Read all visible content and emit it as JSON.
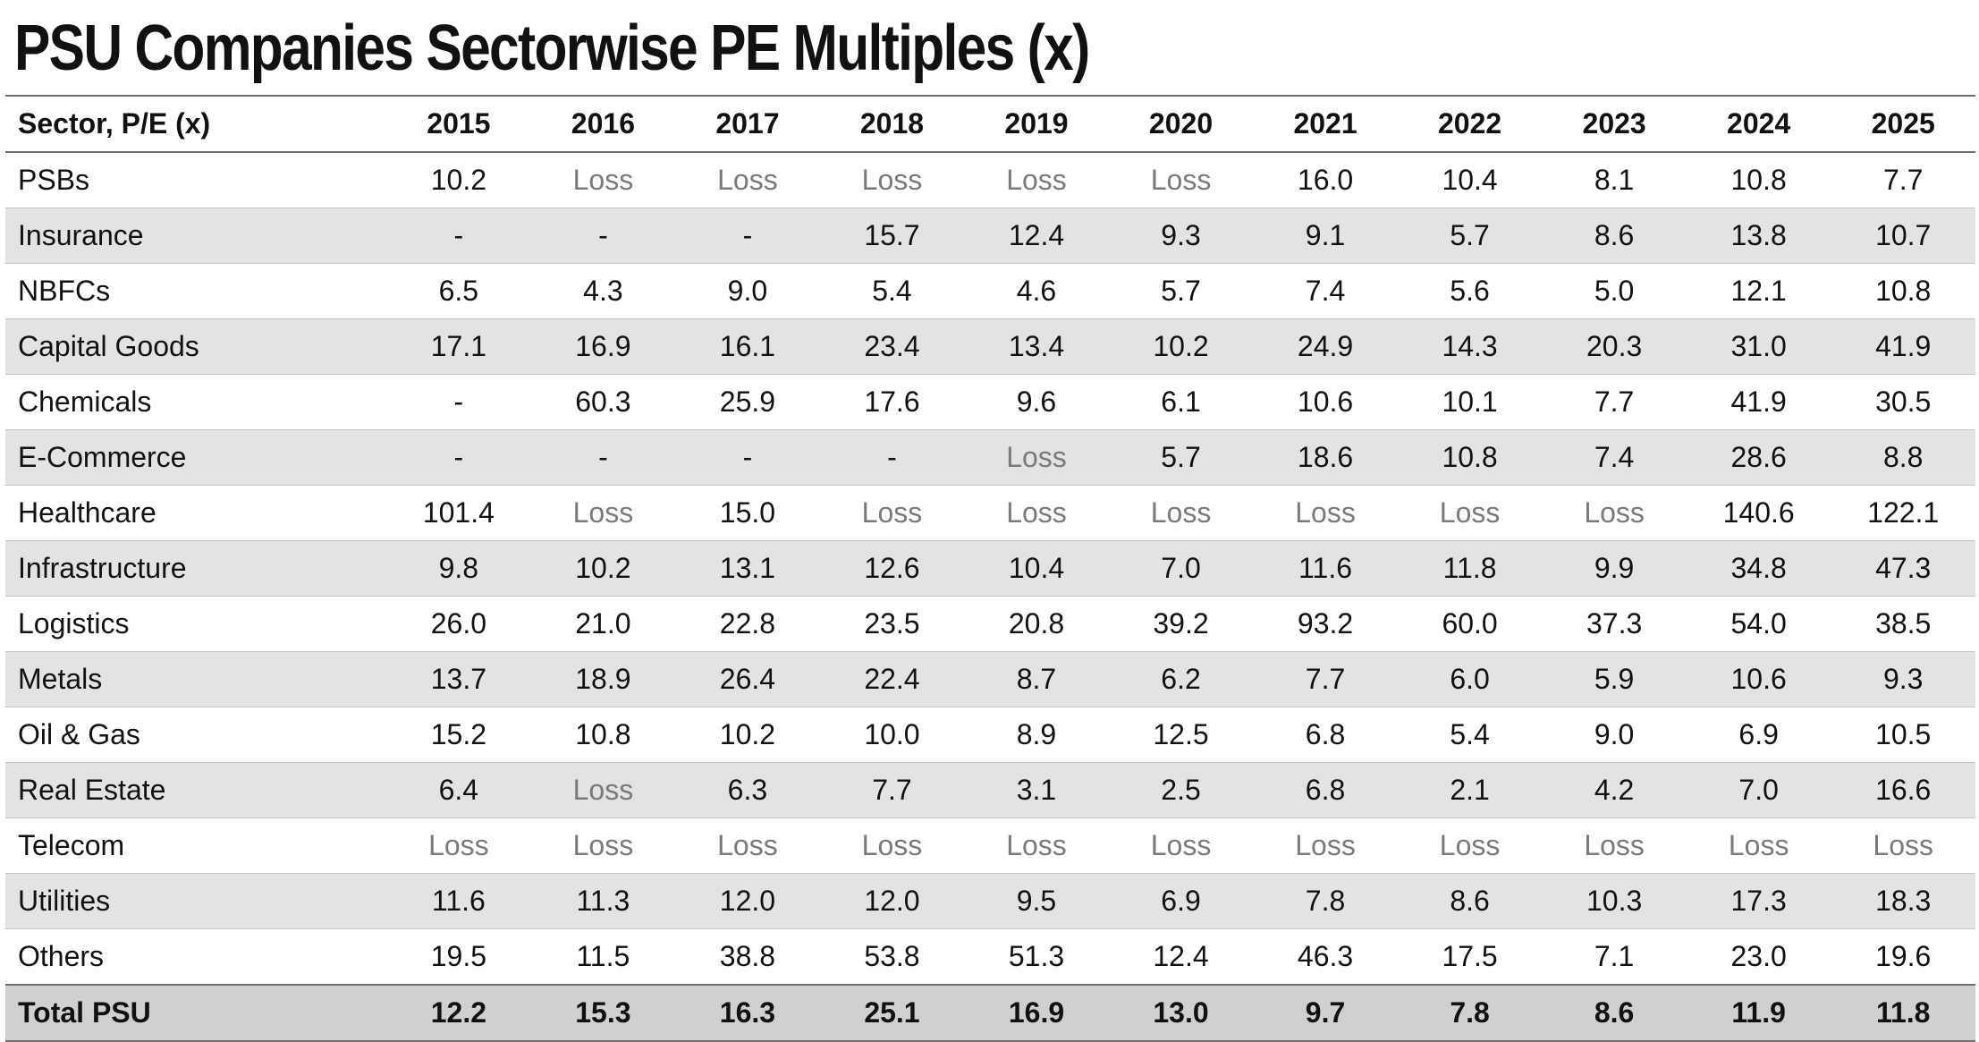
{
  "title": "PSU Companies Sectorwise PE Multiples (x)",
  "table": {
    "header_label": "Sector, P/E (x)",
    "years": [
      "2015",
      "2016",
      "2017",
      "2018",
      "2019",
      "2020",
      "2021",
      "2022",
      "2023",
      "2024",
      "2025"
    ],
    "rows": [
      {
        "sector": "PSBs",
        "values": [
          "10.2",
          "Loss",
          "Loss",
          "Loss",
          "Loss",
          "Loss",
          "16.0",
          "10.4",
          "8.1",
          "10.8",
          "7.7"
        ]
      },
      {
        "sector": "Insurance",
        "values": [
          "-",
          "-",
          "-",
          "15.7",
          "12.4",
          "9.3",
          "9.1",
          "5.7",
          "8.6",
          "13.8",
          "10.7"
        ]
      },
      {
        "sector": "NBFCs",
        "values": [
          "6.5",
          "4.3",
          "9.0",
          "5.4",
          "4.6",
          "5.7",
          "7.4",
          "5.6",
          "5.0",
          "12.1",
          "10.8"
        ]
      },
      {
        "sector": "Capital Goods",
        "values": [
          "17.1",
          "16.9",
          "16.1",
          "23.4",
          "13.4",
          "10.2",
          "24.9",
          "14.3",
          "20.3",
          "31.0",
          "41.9"
        ]
      },
      {
        "sector": "Chemicals",
        "values": [
          "-",
          "60.3",
          "25.9",
          "17.6",
          "9.6",
          "6.1",
          "10.6",
          "10.1",
          "7.7",
          "41.9",
          "30.5"
        ]
      },
      {
        "sector": "E-Commerce",
        "values": [
          "-",
          "-",
          "-",
          "-",
          "Loss",
          "5.7",
          "18.6",
          "10.8",
          "7.4",
          "28.6",
          "8.8"
        ]
      },
      {
        "sector": "Healthcare",
        "values": [
          "101.4",
          "Loss",
          "15.0",
          "Loss",
          "Loss",
          "Loss",
          "Loss",
          "Loss",
          "Loss",
          "140.6",
          "122.1"
        ]
      },
      {
        "sector": "Infrastructure",
        "values": [
          "9.8",
          "10.2",
          "13.1",
          "12.6",
          "10.4",
          "7.0",
          "11.6",
          "11.8",
          "9.9",
          "34.8",
          "47.3"
        ]
      },
      {
        "sector": "Logistics",
        "values": [
          "26.0",
          "21.0",
          "22.8",
          "23.5",
          "20.8",
          "39.2",
          "93.2",
          "60.0",
          "37.3",
          "54.0",
          "38.5"
        ]
      },
      {
        "sector": "Metals",
        "values": [
          "13.7",
          "18.9",
          "26.4",
          "22.4",
          "8.7",
          "6.2",
          "7.7",
          "6.0",
          "5.9",
          "10.6",
          "9.3"
        ]
      },
      {
        "sector": "Oil & Gas",
        "values": [
          "15.2",
          "10.8",
          "10.2",
          "10.0",
          "8.9",
          "12.5",
          "6.8",
          "5.4",
          "9.0",
          "6.9",
          "10.5"
        ]
      },
      {
        "sector": "Real Estate",
        "values": [
          "6.4",
          "Loss",
          "6.3",
          "7.7",
          "3.1",
          "2.5",
          "6.8",
          "2.1",
          "4.2",
          "7.0",
          "16.6"
        ]
      },
      {
        "sector": "Telecom",
        "values": [
          "Loss",
          "Loss",
          "Loss",
          "Loss",
          "Loss",
          "Loss",
          "Loss",
          "Loss",
          "Loss",
          "Loss",
          "Loss"
        ]
      },
      {
        "sector": "Utilities",
        "values": [
          "11.6",
          "11.3",
          "12.0",
          "12.0",
          "9.5",
          "6.9",
          "7.8",
          "8.6",
          "10.3",
          "17.3",
          "18.3"
        ]
      },
      {
        "sector": "Others",
        "values": [
          "19.5",
          "11.5",
          "38.8",
          "53.8",
          "51.3",
          "12.4",
          "46.3",
          "17.5",
          "7.1",
          "23.0",
          "19.6"
        ]
      }
    ],
    "total": {
      "sector": "Total PSU",
      "values": [
        "12.2",
        "15.3",
        "16.3",
        "25.1",
        "16.9",
        "13.0",
        "9.7",
        "7.8",
        "8.6",
        "11.9",
        "11.8"
      ]
    }
  },
  "colors": {
    "text": "#111111",
    "loss_text": "#7a7a7a",
    "shaded_row": "#e3e3e3",
    "total_row": "#d0d0d0",
    "rule": "#6e6e6e"
  }
}
